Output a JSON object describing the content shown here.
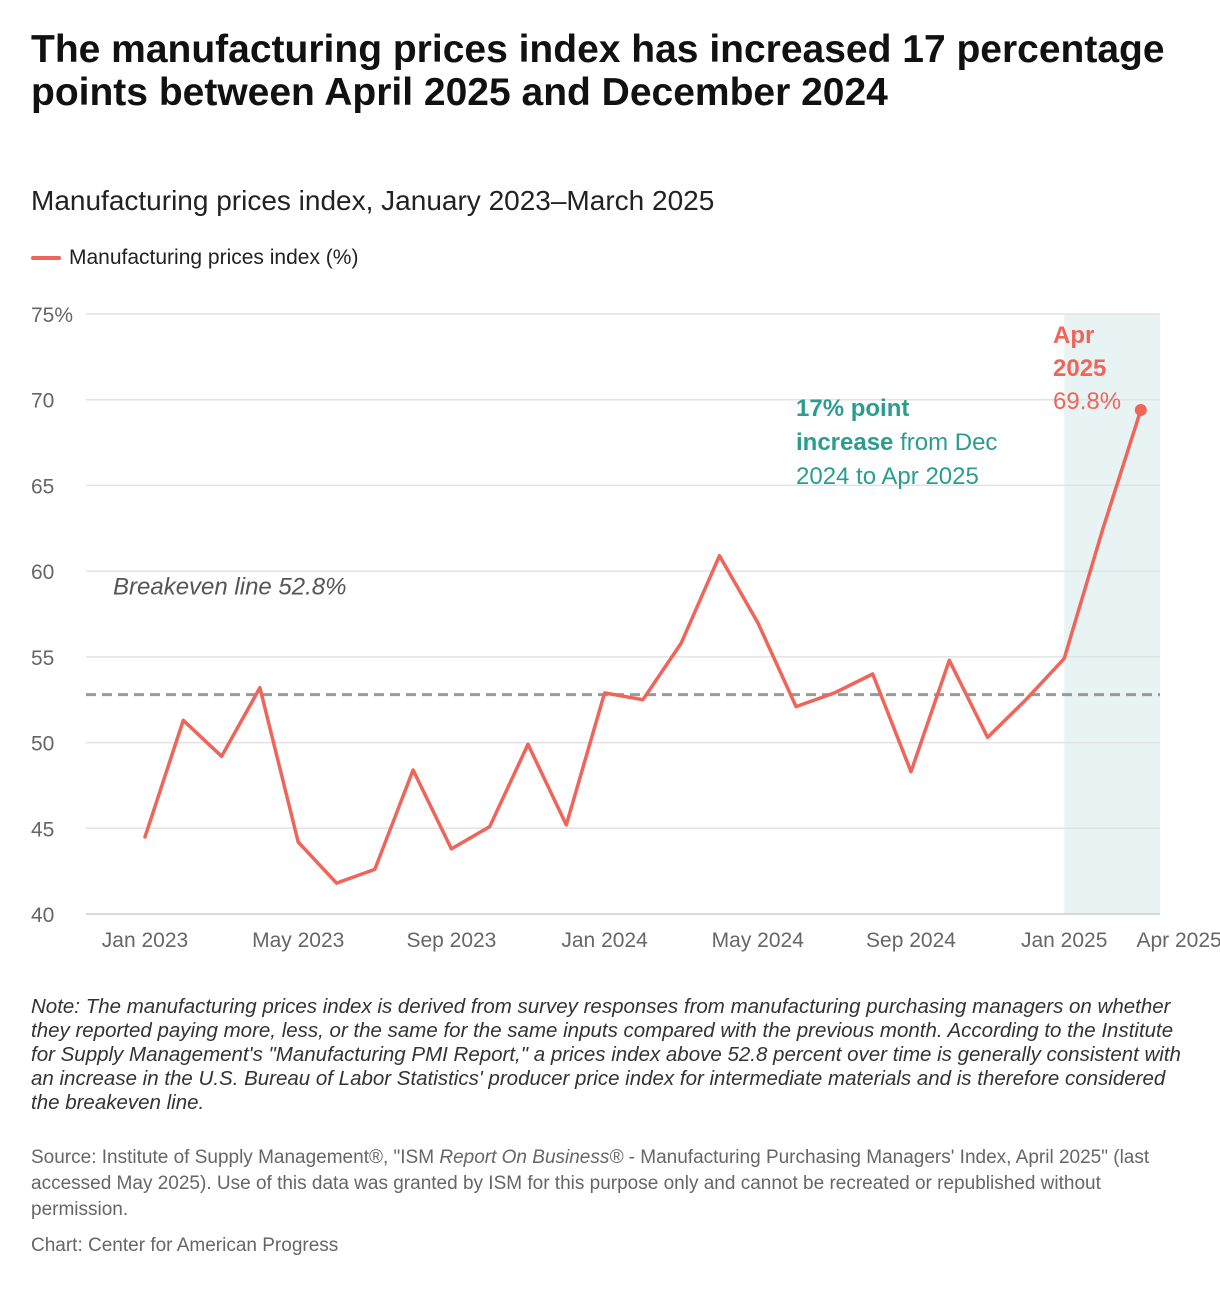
{
  "header": {
    "title": "The manufacturing prices index has increased 17 percentage points between April 2025 and December 2024",
    "subtitle": "Manufacturing prices index, January 2023–March 2025"
  },
  "legend": {
    "label": "Manufacturing prices index (%)"
  },
  "colors": {
    "series": "#f0645a",
    "annotation": "#2a9d8f",
    "highlight": "#e8f4f4",
    "breakeven": "#999999",
    "grid": "#e2e2e2"
  },
  "chart_data": {
    "type": "line",
    "title": "The manufacturing prices index has increased 17 percentage points between April 2025 and December 2024",
    "subtitle": "Manufacturing prices index, January 2023–March 2025",
    "xlabel": "",
    "ylabel": "",
    "ylim": [
      40,
      75
    ],
    "y_ticks": [
      40,
      45,
      50,
      55,
      60,
      65,
      70,
      75
    ],
    "y_tick_labels": [
      "40",
      "45",
      "50",
      "55",
      "60",
      "65",
      "70",
      "75%"
    ],
    "x_tick_labels": [
      {
        "label": "Jan 2023",
        "index": 0
      },
      {
        "label": "May 2023",
        "index": 4
      },
      {
        "label": "Sep 2023",
        "index": 8
      },
      {
        "label": "Jan 2024",
        "index": 12
      },
      {
        "label": "May 2024",
        "index": 16
      },
      {
        "label": "Sep 2024",
        "index": 20
      },
      {
        "label": "Jan 2025",
        "index": 24
      },
      {
        "label": "Apr 2025",
        "index": 27
      }
    ],
    "categories": [
      "Jan 2023",
      "Feb 2023",
      "Mar 2023",
      "Apr 2023",
      "May 2023",
      "Jun 2023",
      "Jul 2023",
      "Aug 2023",
      "Sep 2023",
      "Oct 2023",
      "Nov 2023",
      "Dec 2023",
      "Jan 2024",
      "Feb 2024",
      "Mar 2024",
      "Apr 2024",
      "May 2024",
      "Jun 2024",
      "Jul 2024",
      "Aug 2024",
      "Sep 2024",
      "Oct 2024",
      "Nov 2024",
      "Dec 2024",
      "Jan 2025",
      "Feb 2025",
      "Mar 2025",
      "Apr 2025"
    ],
    "series": [
      {
        "name": "Manufacturing prices index (%)",
        "values": [
          44.5,
          51.3,
          49.2,
          53.2,
          44.2,
          41.8,
          42.6,
          48.4,
          43.8,
          45.1,
          49.9,
          45.2,
          52.9,
          52.5,
          55.8,
          60.9,
          57.0,
          52.1,
          52.9,
          54.0,
          48.3,
          54.8,
          50.3,
          52.5,
          54.9,
          62.4,
          69.4,
          null
        ]
      }
    ],
    "breakeven": {
      "value": 52.8,
      "label": "Breakeven line 52.8%"
    },
    "highlight_range": {
      "from_index": 24,
      "to_index": 27
    },
    "annotations": {
      "callout": {
        "bold": "17% point increase",
        "rest": "from Dec 2024 to Apr 2025"
      },
      "last_point": {
        "month": "Apr",
        "year": "2025",
        "value_label": "69.8%"
      }
    }
  },
  "footer": {
    "note": "Note: The manufacturing prices index is derived from survey responses from manufacturing purchasing managers on whether they reported paying more, less, or the same for the same inputs compared with the previous month. According to the Institute for Supply Management's \"Manufacturing PMI Report,\" a prices index above 52.8 percent over time is generally consistent with an increase in the U.S. Bureau of Labor Statistics' producer price index for intermediate materials and is therefore considered the breakeven line.",
    "source_prefix": "Source: Institute of Supply Management®, \"ISM ",
    "source_italic": "Report On Business®",
    "source_suffix": " - Manufacturing Purchasing Managers' Index, April 2025\" (last accessed May 2025). Use of this data was granted by ISM for this purpose only and cannot be recreated or republished without permission.",
    "credit": "Chart: Center for American Progress"
  }
}
